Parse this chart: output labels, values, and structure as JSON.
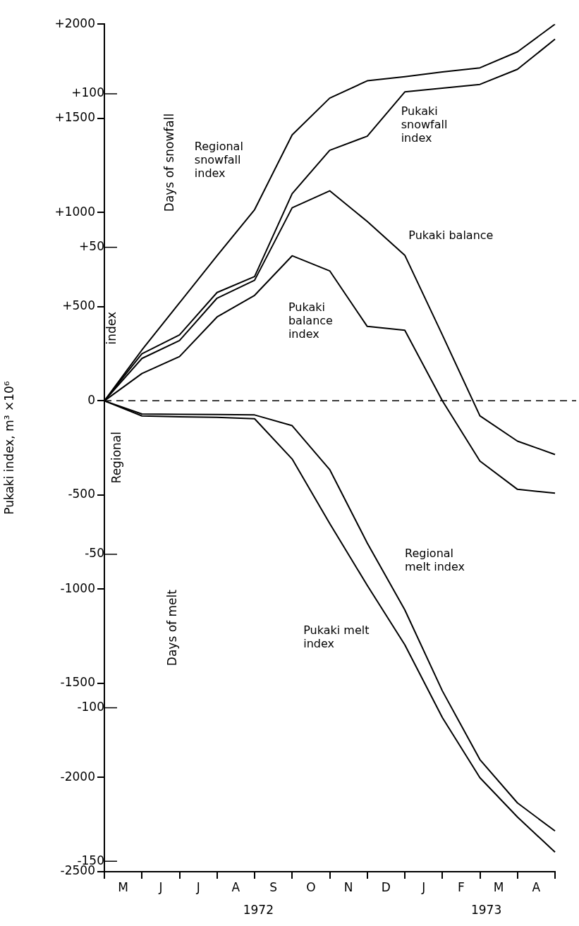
{
  "chart_data": {
    "type": "line",
    "ylabel": "Pukaki index, m³ ×10⁶",
    "categories": [
      null,
      "M",
      null,
      "J",
      null,
      "J",
      null,
      "A",
      null,
      "S",
      null,
      "O",
      null,
      "N",
      null,
      "D",
      null,
      "J",
      null,
      "F",
      null,
      "M",
      null,
      "A",
      null
    ],
    "ylim": [
      -2500,
      2000
    ],
    "yticks": [
      -2500,
      -2000,
      -1500,
      -1000,
      -500,
      0,
      {
        "value": 500,
        "label": "+500"
      },
      {
        "value": 1000,
        "label": "+1000"
      },
      {
        "value": 1500,
        "label": "+1500"
      },
      {
        "value": 2000,
        "label": "+2000"
      }
    ],
    "y2lim": [
      -153.4,
      122.7
    ],
    "y2ticks": [
      -150,
      -100,
      -50,
      {
        "value": 50,
        "label": "+50"
      },
      {
        "value": 100,
        "label": "+100"
      }
    ],
    "series": [
      {
        "name": "Regional snowfall index",
        "color": "#000000",
        "values": [
          0,
          null,
          270,
          null,
          520,
          null,
          770,
          null,
          1015,
          null,
          1412,
          null,
          1607,
          null,
          1699,
          null,
          1721,
          null,
          1746,
          null,
          1768,
          null,
          1853,
          null,
          2000
        ]
      },
      {
        "name": "Pukaki snowfall index",
        "color": "#000000",
        "values": [
          0,
          null,
          250,
          null,
          350,
          null,
          575,
          null,
          660,
          null,
          1100,
          null,
          1330,
          null,
          1405,
          null,
          1640,
          null,
          1660,
          null,
          1680,
          null,
          1760,
          null,
          1920
        ]
      },
      {
        "name": "Pukaki balance",
        "color": "#000000",
        "values": [
          0,
          null,
          225,
          null,
          320,
          null,
          545,
          null,
          640,
          null,
          1025,
          null,
          1115,
          null,
          952,
          null,
          773,
          null,
          350,
          null,
          -80,
          null,
          -214,
          null,
          -285
        ]
      },
      {
        "name": "Pukaki balance index",
        "color": "#000000",
        "values": [
          0,
          null,
          145,
          null,
          235,
          null,
          445,
          null,
          560,
          null,
          770,
          null,
          690,
          null,
          395,
          null,
          375,
          null,
          0,
          null,
          -320,
          null,
          -470,
          null,
          -490
        ]
      },
      {
        "name": "Regional melt index",
        "color": "#000000",
        "values": [
          0,
          null,
          -70,
          null,
          -72,
          null,
          -73,
          null,
          -75,
          null,
          -132,
          null,
          -365,
          null,
          -755,
          null,
          -1110,
          null,
          -1540,
          null,
          -1905,
          null,
          -2135,
          null,
          -2284
        ]
      },
      {
        "name": "Pukaki melt index",
        "color": "#000000",
        "values": [
          0,
          null,
          -80,
          null,
          -85,
          null,
          -88,
          null,
          -95,
          null,
          -309,
          null,
          -651,
          null,
          -980,
          null,
          -1295,
          null,
          -1682,
          null,
          -2001,
          null,
          -2210,
          null,
          -2396
        ]
      }
    ],
    "ref_lines": [
      {
        "axis": "y",
        "value": 0,
        "line_style": "dashed",
        "color": "#000000"
      }
    ],
    "annotations": [
      "Days of snowfall",
      "Days of melt",
      "index",
      "Regional",
      "1972",
      "1973"
    ],
    "grid": false,
    "legend": false,
    "marker": "none",
    "line_style": "solid"
  }
}
